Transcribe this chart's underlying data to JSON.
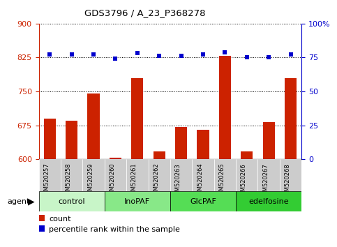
{
  "title": "GDS3796 / A_23_P368278",
  "samples": [
    "GSM520257",
    "GSM520258",
    "GSM520259",
    "GSM520260",
    "GSM520261",
    "GSM520262",
    "GSM520263",
    "GSM520264",
    "GSM520265",
    "GSM520266",
    "GSM520267",
    "GSM520268"
  ],
  "counts": [
    690,
    685,
    745,
    604,
    780,
    617,
    672,
    665,
    828,
    618,
    682,
    780
  ],
  "percentiles": [
    77,
    77,
    77,
    74,
    78,
    76,
    76,
    77,
    79,
    75,
    75,
    77
  ],
  "groups": [
    {
      "label": "control",
      "start": 0,
      "end": 3,
      "color": "#c8f5c8"
    },
    {
      "label": "InoPAF",
      "start": 3,
      "end": 6,
      "color": "#88e888"
    },
    {
      "label": "GlcPAF",
      "start": 6,
      "end": 9,
      "color": "#55dd55"
    },
    {
      "label": "edelfosine",
      "start": 9,
      "end": 12,
      "color": "#33cc33"
    }
  ],
  "ylim_left": [
    600,
    900
  ],
  "ylim_right": [
    0,
    100
  ],
  "yticks_left": [
    600,
    675,
    750,
    825,
    900
  ],
  "yticks_right": [
    0,
    25,
    50,
    75,
    100
  ],
  "bar_color": "#cc2200",
  "dot_color": "#0000cc",
  "bg_color": "#ffffff",
  "cell_bg": "#cccccc",
  "legend_count_color": "#cc2200",
  "legend_pct_color": "#0000cc"
}
